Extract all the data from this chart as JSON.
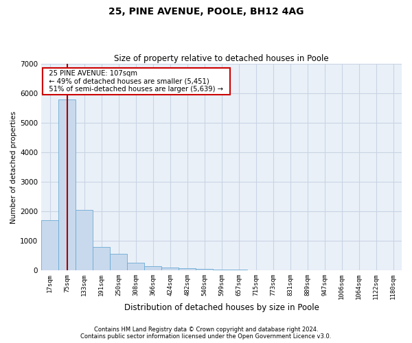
{
  "title1": "25, PINE AVENUE, POOLE, BH12 4AG",
  "title2": "Size of property relative to detached houses in Poole",
  "xlabel": "Distribution of detached houses by size in Poole",
  "ylabel": "Number of detached properties",
  "categories": [
    "17sqm",
    "75sqm",
    "133sqm",
    "191sqm",
    "250sqm",
    "308sqm",
    "366sqm",
    "424sqm",
    "482sqm",
    "540sqm",
    "599sqm",
    "657sqm",
    "715sqm",
    "773sqm",
    "831sqm",
    "889sqm",
    "947sqm",
    "1006sqm",
    "1064sqm",
    "1122sqm",
    "1180sqm"
  ],
  "values": [
    1700,
    5800,
    2050,
    800,
    550,
    250,
    150,
    100,
    80,
    50,
    25,
    15,
    10,
    8,
    5,
    4,
    3,
    3,
    2,
    2,
    1
  ],
  "bar_color": "#c8d9ed",
  "bar_edgecolor": "#6aaad4",
  "redline_x": 1.5,
  "annotation_line1": "25 PINE AVENUE: 107sqm",
  "annotation_line2": "← 49% of detached houses are smaller (5,451)",
  "annotation_line3": "51% of semi-detached houses are larger (5,639) →",
  "ylim": [
    0,
    7000
  ],
  "yticks": [
    0,
    1000,
    2000,
    3000,
    4000,
    5000,
    6000,
    7000
  ],
  "footer1": "Contains HM Land Registry data © Crown copyright and database right 2024.",
  "footer2": "Contains public sector information licensed under the Open Government Licence v3.0.",
  "bg_color": "#ffffff",
  "plot_bg_color": "#eaf0f8",
  "grid_color": "#c8d4e4",
  "annotation_box_edgecolor": "#cc0000",
  "redline_color": "#aa0000",
  "title1_fontsize": 10,
  "title2_fontsize": 8.5
}
